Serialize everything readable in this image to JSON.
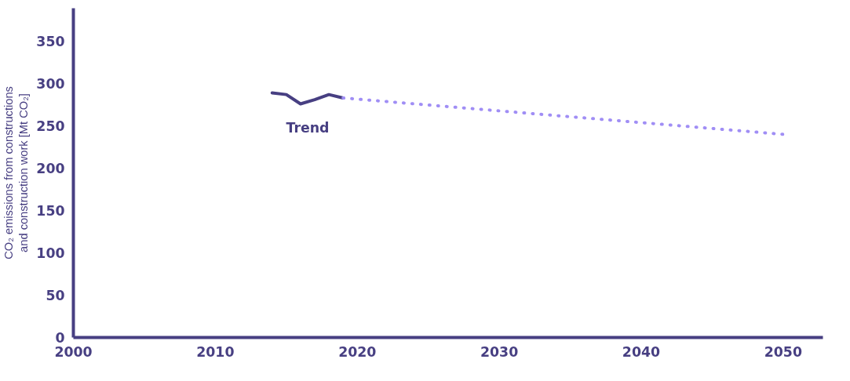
{
  "chart_data": {
    "type": "line",
    "ylabel": "CO₂ emissions from constructions\nand construction work [Mt CO₂]",
    "xlim": [
      2000,
      2052.8
    ],
    "xticks": [
      2000,
      2010,
      2020,
      2030,
      2040,
      2050
    ],
    "ylim": [
      0,
      389
    ],
    "yticks": [
      0,
      50,
      100,
      150,
      200,
      250,
      300,
      350
    ],
    "grid": false,
    "marker": "none",
    "series": [
      {
        "color": "#473f82",
        "line_style": "solid",
        "x": [
          2014,
          2015,
          2016,
          2017,
          2018,
          2019
        ],
        "values": [
          289,
          287,
          276,
          281,
          287,
          283
        ]
      },
      {
        "color": "#a08ef5",
        "line_style": "dotted",
        "x": [
          2019,
          2050
        ],
        "values": [
          283,
          240
        ]
      }
    ],
    "annotations": [
      "Trend"
    ]
  }
}
